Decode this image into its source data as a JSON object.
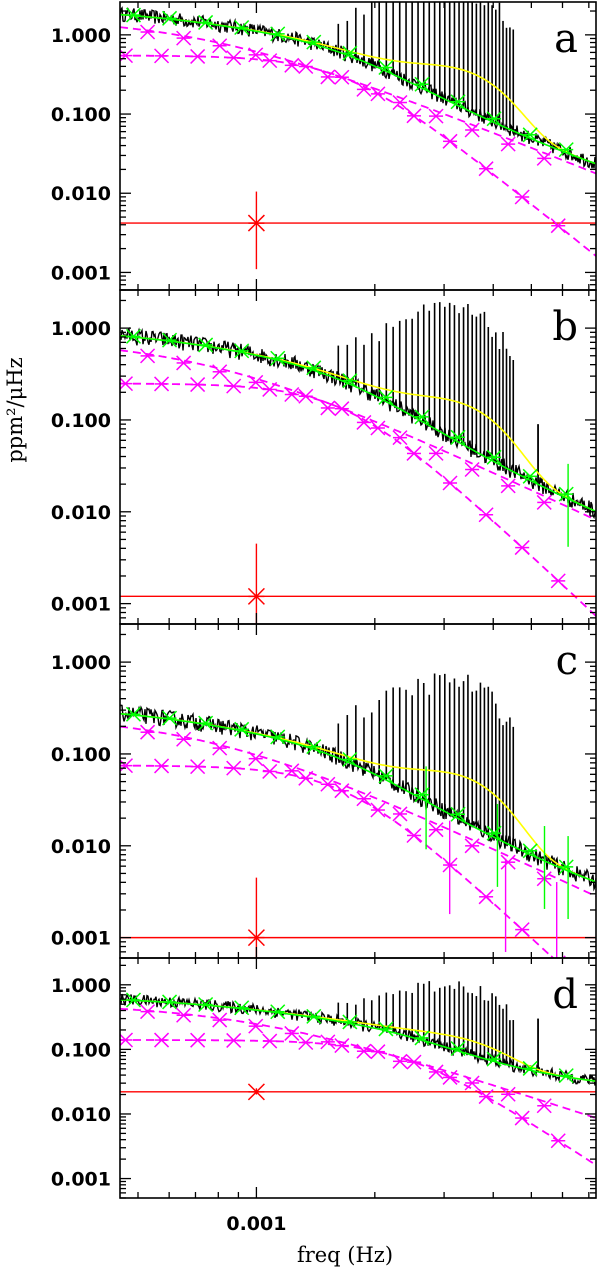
{
  "colors": {
    "observed": "#000000",
    "fit": "#00ff00",
    "granulation": "#ff00ff",
    "white_noise": "#ff0000",
    "oscillation": "#ffff00"
  },
  "chart_data": [
    {
      "type": "line",
      "panel_label": "a",
      "xscale": "log",
      "yscale": "log",
      "xlim": [
        0.00045,
        0.0073
      ],
      "ylim": [
        0.0006,
        2.6
      ],
      "y_ticks": [
        "1.000",
        "0.100",
        "0.010",
        "0.001"
      ],
      "y_tick_values": [
        1.0,
        0.1,
        0.01,
        0.001
      ],
      "noise": 0.0042,
      "noise_error": [
        0.0011,
        0.0105
      ],
      "gran": [
        {
          "a": 0.55,
          "f": 0.0017,
          "c": 4
        },
        {
          "a": 1.7,
          "f": 0.00075,
          "c": 2
        }
      ],
      "osc": {
        "h": 0.25,
        "f": 0.0031,
        "w": 0.0009
      },
      "spike_freq": 0.0052,
      "spike_value": 0.04,
      "green_err_freqs": [],
      "magenta_err_freqs": []
    },
    {
      "type": "line",
      "panel_label": "b",
      "xscale": "log",
      "yscale": "log",
      "xlim": [
        0.00045,
        0.0073
      ],
      "ylim": [
        0.0006,
        2.6
      ],
      "y_ticks": [
        "1.000",
        "0.100",
        "0.010",
        "0.001"
      ],
      "y_tick_values": [
        1.0,
        0.1,
        0.01,
        0.001
      ],
      "noise": 0.0012,
      "noise_error": [
        0.0005,
        0.0045
      ],
      "gran": [
        {
          "a": 0.25,
          "f": 0.0017,
          "c": 4
        },
        {
          "a": 0.78,
          "f": 0.00075,
          "c": 2
        }
      ],
      "osc": {
        "h": 0.1,
        "f": 0.0031,
        "w": 0.0009
      },
      "spike_freq": 0.0052,
      "spike_value": 0.09,
      "green_err_freqs": [
        0.0062
      ],
      "magenta_err_freqs": []
    },
    {
      "type": "line",
      "panel_label": "c",
      "xscale": "log",
      "yscale": "log",
      "xlim": [
        0.00045,
        0.0073
      ],
      "ylim": [
        0.0006,
        2.6
      ],
      "y_ticks": [
        "1.000",
        "0.100",
        "0.010",
        "0.001"
      ],
      "y_tick_values": [
        1.0,
        0.1,
        0.01,
        0.001
      ],
      "noise": 0.001,
      "noise_error": [
        0.0004,
        0.0045
      ],
      "gran": [
        {
          "a": 0.075,
          "f": 0.0017,
          "c": 4
        },
        {
          "a": 0.27,
          "f": 0.00075,
          "c": 2
        }
      ],
      "osc": {
        "h": 0.04,
        "f": 0.0031,
        "w": 0.0009
      },
      "spike_freq": null,
      "spike_value": null,
      "green_err_freqs": [
        0.0027,
        0.0041,
        0.0054,
        0.0062
      ],
      "magenta_err_freqs": [
        0.0031,
        0.0043,
        0.0058
      ]
    },
    {
      "type": "line",
      "panel_label": "d",
      "xscale": "log",
      "yscale": "log",
      "xlim": [
        0.00045,
        0.0073
      ],
      "ylim": [
        0.0005,
        2.6
      ],
      "y_ticks": [
        "1.000",
        "0.100",
        "0.010",
        "0.001"
      ],
      "y_tick_values": [
        1.0,
        0.1,
        0.01,
        0.001
      ],
      "noise": 0.022,
      "noise_error": [
        0.02,
        0.025
      ],
      "gran": [
        {
          "a": 0.14,
          "f": 0.0024,
          "c": 4
        },
        {
          "a": 0.52,
          "f": 0.00095,
          "c": 2
        }
      ],
      "osc": {
        "h": 0.06,
        "f": 0.0031,
        "w": 0.0009
      },
      "spike_freq": 0.0052,
      "spike_value": 0.3,
      "green_err_freqs": [],
      "magenta_err_freqs": []
    }
  ],
  "axes": {
    "xlabel": "freq (Hz)",
    "ylabel": "ppm²/μHz",
    "x_tick_label": "0.001",
    "x_tick_value": 0.001
  }
}
